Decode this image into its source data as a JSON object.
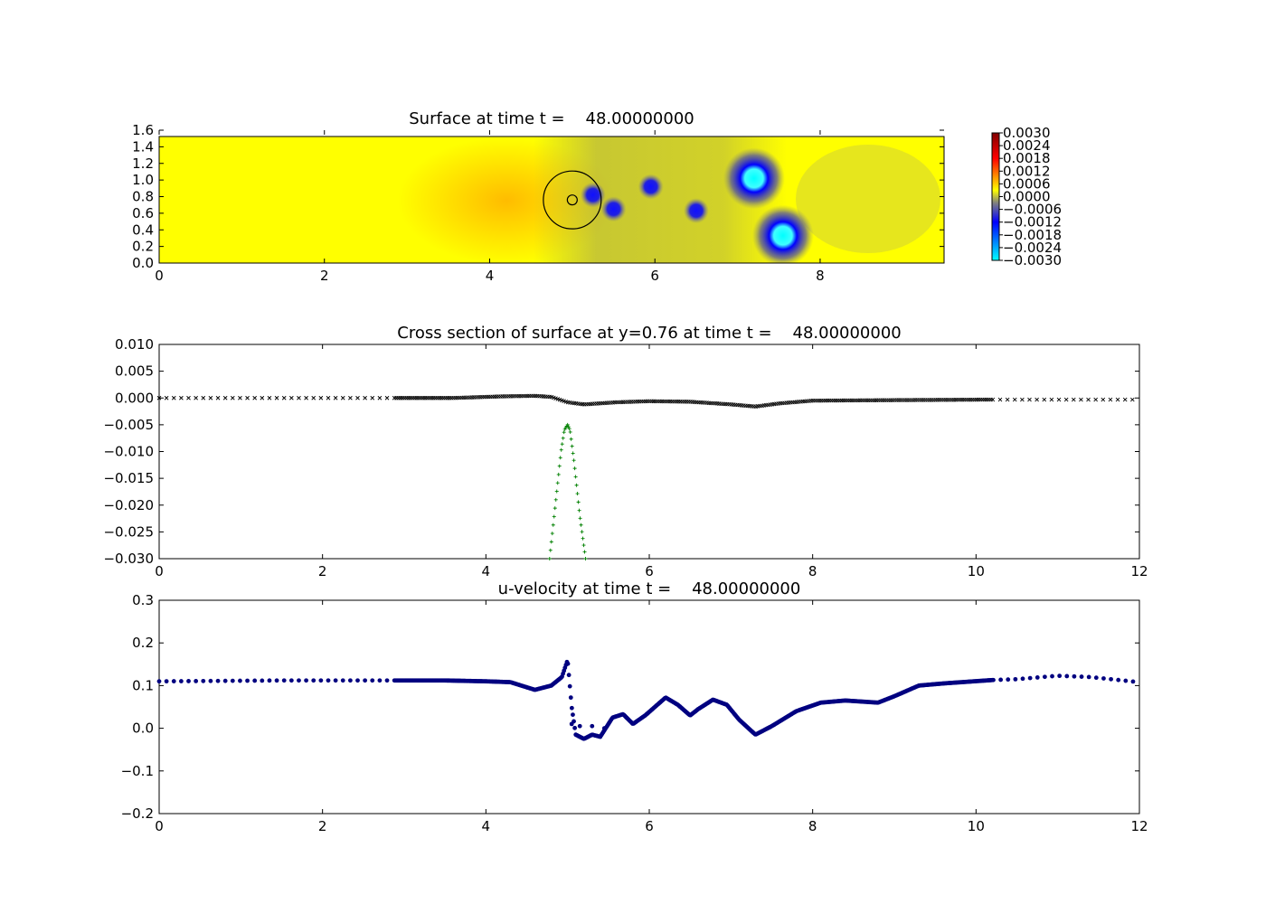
{
  "chart_data": [
    {
      "type": "heatmap",
      "title": "Surface at time t =    48.00000000",
      "xlim": [
        0,
        9.5
      ],
      "ylim": [
        0,
        1.6
      ],
      "x_ticks": [
        "0",
        "2",
        "4",
        "6",
        "8"
      ],
      "y_ticks": [
        "0.0",
        "0.2",
        "0.4",
        "0.6",
        "0.8",
        "1.0",
        "1.2",
        "1.4",
        "1.6"
      ],
      "colormap": [
        "#00ffff",
        "#0000ff",
        "#808080",
        "#ffff00",
        "#ff0000",
        "#800000"
      ],
      "colorbar_ticks": [
        "0.0030",
        "0.0024",
        "0.0018",
        "0.0012",
        "0.0006",
        "0.0000",
        "−0.0006",
        "−0.0012",
        "−0.0018",
        "−0.0024",
        "−0.0030"
      ],
      "colorbar_range": [
        -0.003,
        0.003
      ],
      "circles": [
        {
          "cx": 5.0,
          "cy": 0.76,
          "r": 0.35
        },
        {
          "cx": 5.0,
          "cy": 0.76,
          "r": 0.06
        }
      ],
      "features": [
        {
          "x": 5.25,
          "y": 0.82,
          "value": -0.0016
        },
        {
          "x": 5.5,
          "y": 0.65,
          "value": -0.0017
        },
        {
          "x": 5.95,
          "y": 0.92,
          "value": -0.0018
        },
        {
          "x": 6.5,
          "y": 0.63,
          "value": -0.0017
        },
        {
          "x": 7.2,
          "y": 1.02,
          "value": -0.003
        },
        {
          "x": 7.55,
          "y": 0.33,
          "value": -0.003
        }
      ]
    },
    {
      "type": "scatter",
      "title": "Cross section of surface at y=0.76 at time t =    48.00000000",
      "xlim": [
        0,
        12
      ],
      "ylim": [
        -0.03,
        0.01
      ],
      "x_ticks": [
        "0",
        "2",
        "4",
        "6",
        "8",
        "10",
        "12"
      ],
      "y_ticks": [
        "0.010",
        "0.005",
        "0.000",
        "−0.005",
        "−0.010",
        "−0.015",
        "−0.020",
        "−0.025",
        "−0.030"
      ],
      "series": [
        {
          "marker": "x",
          "color": "#000000",
          "x": [
            0,
            2.8,
            3.6,
            4.2,
            4.6,
            4.8,
            5.0,
            5.2,
            5.6,
            6.0,
            6.5,
            7.0,
            7.3,
            7.6,
            8.0,
            9.0,
            10.2,
            12
          ],
          "y": [
            0,
            0,
            0,
            0.0003,
            0.0004,
            0.0002,
            -0.0008,
            -0.0012,
            -0.0008,
            -0.0006,
            -0.0007,
            -0.0012,
            -0.0016,
            -0.001,
            -0.0005,
            -0.0004,
            -0.0003,
            -0.0003
          ]
        },
        {
          "marker": "+",
          "color": "#008000",
          "x": [
            4.78,
            4.85,
            4.92,
            4.96,
            5.0,
            5.03,
            5.08,
            5.15,
            5.22
          ],
          "y": [
            -0.03,
            -0.02,
            -0.01,
            -0.006,
            -0.005,
            -0.006,
            -0.012,
            -0.022,
            -0.03
          ]
        }
      ]
    },
    {
      "type": "scatter",
      "title": "u-velocity at time t =    48.00000000",
      "xlim": [
        0,
        12
      ],
      "ylim": [
        -0.2,
        0.3
      ],
      "x_ticks": [
        "0",
        "2",
        "4",
        "6",
        "8",
        "10",
        "12"
      ],
      "y_ticks": [
        "0.3",
        "0.2",
        "0.1",
        "0.0",
        "−0.1",
        "−0.2"
      ],
      "series": [
        {
          "marker": "o",
          "color": "#000080",
          "x": [
            0,
            1.5,
            2.8,
            3.5,
            4.0,
            4.3,
            4.6,
            4.8,
            4.93,
            5.0,
            5.05,
            5.1,
            5.2,
            5.3,
            5.4,
            5.55,
            5.68,
            5.8,
            5.95,
            6.2,
            6.35,
            6.5,
            6.6,
            6.78,
            6.95,
            7.1,
            7.3,
            7.5,
            7.8,
            8.1,
            8.4,
            8.8,
            9.0,
            9.3,
            9.6,
            10.2,
            10.5,
            11.0,
            11.4,
            12
          ],
          "y": [
            0.11,
            0.112,
            0.112,
            0.112,
            0.11,
            0.108,
            0.09,
            0.1,
            0.12,
            0.16,
            0.05,
            -0.015,
            -0.025,
            -0.015,
            -0.02,
            0.025,
            0.033,
            0.01,
            0.03,
            0.072,
            0.055,
            0.03,
            0.045,
            0.067,
            0.055,
            0.02,
            -0.015,
            0.005,
            0.04,
            0.06,
            0.065,
            0.06,
            0.075,
            0.1,
            0.105,
            0.113,
            0.115,
            0.123,
            0.12,
            0.108
          ]
        },
        {
          "marker": "o",
          "color": "#000080",
          "x": [
            5.05,
            5.15,
            5.3,
            5.45
          ],
          "y": [
            0.01,
            0.005,
            0.005,
            0.0
          ]
        }
      ]
    }
  ]
}
